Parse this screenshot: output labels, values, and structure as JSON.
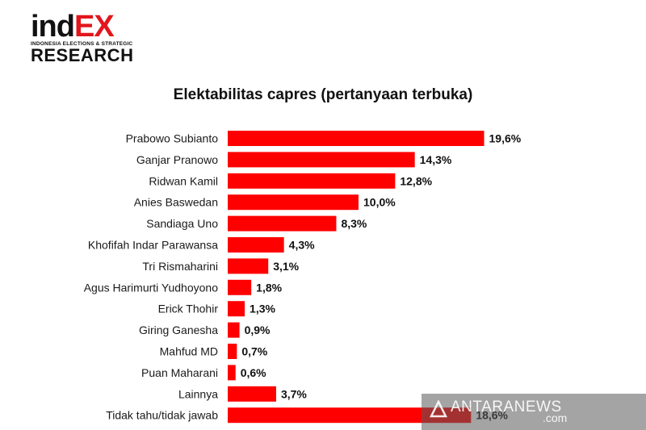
{
  "logo": {
    "part_black": "ind",
    "part_red": "EX",
    "tagline": "INDONESIA ELECTIONS & STRATEGIC",
    "research": "RESEARCH"
  },
  "watermark": {
    "text": "ANTARANEWS",
    "suffix": ".com",
    "icon": "antara-logo-icon"
  },
  "colors": {
    "bar": "#ff0000",
    "brand_red": "#e2161c"
  },
  "chart_data": {
    "type": "bar",
    "orientation": "horizontal",
    "title": "Elektabilitas capres (pertanyaan terbuka)",
    "categories": [
      "Prabowo Subianto",
      "Ganjar Pranowo",
      "Ridwan Kamil",
      "Anies Baswedan",
      "Sandiaga Uno",
      "Khofifah Indar Parawansa",
      "Tri Rismaharini",
      "Agus Harimurti Yudhoyono",
      "Erick Thohir",
      "Giring Ganesha",
      "Mahfud MD",
      "Puan Maharani",
      "Lainnya",
      "Tidak tahu/tidak jawab"
    ],
    "values": [
      19.6,
      14.3,
      12.8,
      10.0,
      8.3,
      4.3,
      3.1,
      1.8,
      1.3,
      0.9,
      0.7,
      0.6,
      3.7,
      18.6
    ],
    "labels": [
      "19,6%",
      "14,3%",
      "12,8%",
      "10,0%",
      "8,3%",
      "4,3%",
      "3,1%",
      "1,8%",
      "1,3%",
      "0,9%",
      "0,7%",
      "0,6%",
      "3,7%",
      "18,6%"
    ],
    "xlabel": "",
    "ylabel": "",
    "grid": false,
    "legend": "none"
  }
}
